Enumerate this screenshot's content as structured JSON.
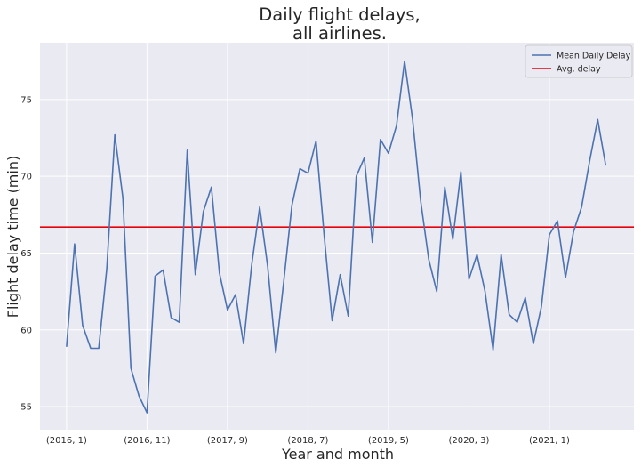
{
  "chart_data": {
    "type": "line",
    "title_lines": [
      "Daily flight delays,",
      "all airlines."
    ],
    "xlabel": "Year and month",
    "ylabel": "Flight delay time (min)",
    "x_tick_labels": [
      "(2016, 1)",
      "(2016, 11)",
      "(2017, 9)",
      "(2018, 7)",
      "(2019, 5)",
      "(2020, 3)",
      "(2021, 1)"
    ],
    "x_tick_index": [
      0,
      10,
      20,
      30,
      40,
      50,
      60
    ],
    "y_ticks": [
      55,
      60,
      65,
      70,
      75
    ],
    "ylim": [
      53.5,
      78.7
    ],
    "xlim": [
      -3.3,
      70.5
    ],
    "grid": true,
    "legend_position": "top-right",
    "series": [
      {
        "name": "Mean Daily Delay",
        "color": "#4c72b0",
        "x_start_label": "(2016, 1)",
        "values": [
          58.9,
          65.6,
          60.3,
          58.8,
          58.8,
          64.0,
          72.7,
          68.6,
          57.5,
          55.7,
          54.6,
          63.5,
          63.9,
          60.8,
          60.5,
          71.7,
          63.6,
          67.7,
          69.3,
          63.7,
          61.3,
          62.3,
          59.1,
          64.2,
          68.0,
          64.1,
          58.5,
          63.2,
          68.1,
          70.5,
          70.2,
          72.3,
          66.2,
          60.6,
          63.6,
          60.9,
          70.0,
          71.2,
          65.7,
          72.4,
          71.5,
          73.3,
          77.5,
          73.7,
          68.4,
          64.6,
          62.5,
          69.3,
          65.9,
          70.3,
          63.3,
          64.9,
          62.5,
          58.7,
          64.9,
          61.0,
          60.5,
          62.1,
          59.1,
          61.5,
          66.2,
          67.1,
          63.4,
          66.4,
          68.0,
          71.0,
          73.7,
          70.7
        ]
      }
    ],
    "reference_lines": [
      {
        "name": "Avg. delay",
        "color": "#e8000b",
        "y": 66.7
      }
    ],
    "style": {
      "background": "#eaeaf2",
      "grid_color": "#ffffff",
      "text_color": "#262626",
      "title_color": "#262626"
    }
  }
}
